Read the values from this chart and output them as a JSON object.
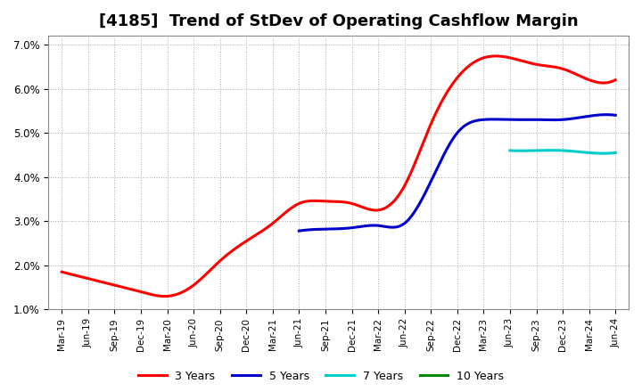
{
  "title": "[4185]  Trend of StDev of Operating Cashflow Margin",
  "title_fontsize": 13,
  "ylim": [
    0.01,
    0.072
  ],
  "yticks": [
    0.01,
    0.02,
    0.03,
    0.04,
    0.05,
    0.06,
    0.07
  ],
  "background_color": "#ffffff",
  "plot_bg_color": "#ffffff",
  "grid_color": "#aaaaaa",
  "series": {
    "3yr": {
      "color": "#ff0000",
      "label": "3 Years",
      "x": [
        0,
        1,
        2,
        3,
        4,
        5,
        6,
        7,
        8,
        9,
        10,
        11,
        12,
        13,
        14,
        15,
        16,
        17,
        18,
        19,
        20,
        21
      ],
      "y": [
        0.0185,
        0.017,
        0.0155,
        0.014,
        0.013,
        0.0155,
        0.021,
        0.0255,
        0.0295,
        0.034,
        0.0345,
        0.034,
        0.0325,
        0.038,
        0.052,
        0.0625,
        0.067,
        0.067,
        0.0655,
        0.0645,
        0.062,
        0.062
      ]
    },
    "5yr": {
      "color": "#0000cc",
      "label": "5 Years",
      "x": [
        9,
        10,
        11,
        12,
        13,
        14,
        15,
        16,
        17,
        18,
        19,
        20,
        21
      ],
      "y": [
        0.0278,
        0.0282,
        0.0285,
        0.029,
        0.0295,
        0.039,
        0.05,
        0.053,
        0.053,
        0.053,
        0.053,
        0.0538,
        0.054
      ]
    },
    "7yr": {
      "color": "#00cccc",
      "label": "7 Years",
      "x": [
        17,
        18,
        19,
        20,
        21
      ],
      "y": [
        0.046,
        0.046,
        0.046,
        0.0455,
        0.0455
      ]
    },
    "10yr": {
      "color": "#008800",
      "label": "10 Years",
      "x": [],
      "y": []
    }
  },
  "xtick_labels": [
    "Mar-19",
    "Jun-19",
    "Sep-19",
    "Dec-19",
    "Mar-20",
    "Jun-20",
    "Sep-20",
    "Dec-20",
    "Mar-21",
    "Jun-21",
    "Sep-21",
    "Dec-21",
    "Mar-22",
    "Jun-22",
    "Sep-22",
    "Dec-22",
    "Mar-23",
    "Jun-23",
    "Sep-23",
    "Dec-23",
    "Mar-24",
    "Jun-24"
  ],
  "linewidth": 2.2
}
